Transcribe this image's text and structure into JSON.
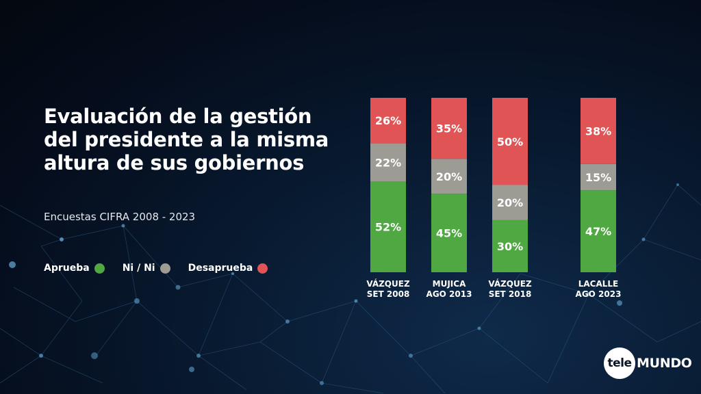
{
  "header": {
    "title": "Evaluación de la gestión del presidente a la misma altura de sus gobiernos",
    "subtitle": "Encuestas CIFRA 2008 - 2023"
  },
  "legend": [
    {
      "label": "Aprueba",
      "color": "#4fa842"
    },
    {
      "label": "Ni / Ni",
      "color": "#9d9c94"
    },
    {
      "label": "Desaprueba",
      "color": "#e05456"
    }
  ],
  "logo": {
    "circle_text": "tele",
    "text": "MUNDO"
  },
  "chart_data": {
    "type": "bar",
    "stacked": true,
    "categories": [
      {
        "line1": "VÁZQUEZ",
        "line2": "SET 2008"
      },
      {
        "line1": "MUJICA",
        "line2": "AGO 2013"
      },
      {
        "line1": "VÁZQUEZ",
        "line2": "SET 2018"
      },
      {
        "line1": "LACALLE",
        "line2": "AGO 2023"
      }
    ],
    "series": [
      {
        "name": "Aprueba",
        "color": "#4fa842",
        "values": [
          52,
          45,
          30,
          47
        ]
      },
      {
        "name": "Ni / Ni",
        "color": "#9d9c94",
        "values": [
          22,
          20,
          20,
          15
        ]
      },
      {
        "name": "Desaprueba",
        "color": "#e05456",
        "values": [
          26,
          35,
          50,
          38
        ]
      }
    ],
    "value_suffix": "%",
    "ylim": [
      0,
      100
    ]
  }
}
